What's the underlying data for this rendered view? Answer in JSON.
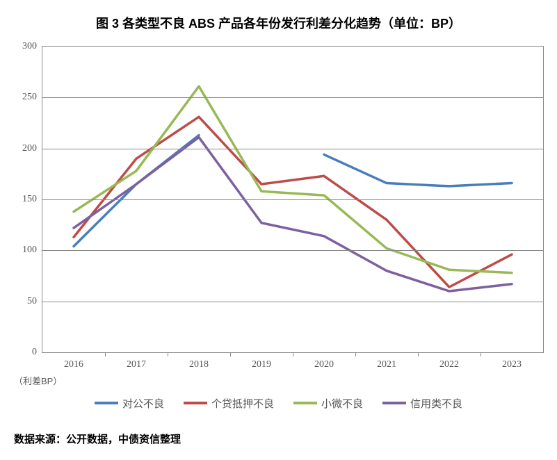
{
  "chart": {
    "type": "line",
    "title": "图 3 各类型不良 ABS 产品各年份发行利差分化趋势（单位：BP）",
    "title_fontsize": 18,
    "title_fontweight": "bold",
    "background_color": "#ffffff",
    "plot_border_color": "#888888",
    "grid_color": "#888888",
    "axis_label": "（利差BP）",
    "axis_label_fontsize": 13,
    "tick_fontsize": 14,
    "tick_color": "#555555",
    "tick_fontfamily": "Times New Roman, serif",
    "line_width": 3.5,
    "xlim": [
      0,
      8
    ],
    "ylim": [
      0,
      300
    ],
    "ytick_step": 50,
    "yticks": [
      0,
      50,
      100,
      150,
      200,
      250,
      300
    ],
    "categories": [
      "2016",
      "2017",
      "2018",
      "2019",
      "2020",
      "2021",
      "2022",
      "2023"
    ],
    "series": [
      {
        "name": "对公不良",
        "color": "#4a7ebb",
        "data": [
          104,
          165,
          213,
          null,
          194,
          166,
          163,
          166
        ]
      },
      {
        "name": "个贷抵押不良",
        "color": "#be4b48",
        "data": [
          113,
          190,
          231,
          165,
          173,
          130,
          64,
          96
        ]
      },
      {
        "name": "小微不良",
        "color": "#98b954",
        "data": [
          138,
          178,
          261,
          158,
          154,
          102,
          81,
          78
        ]
      },
      {
        "name": "信用类不良",
        "color": "#7d60a0",
        "data": [
          122,
          165,
          211,
          127,
          114,
          80,
          60,
          67
        ]
      }
    ],
    "legend_fontsize": 15,
    "legend_swatch_width": 34,
    "legend_swatch_height": 4,
    "source_label": "数据来源：公开数据，中债资信整理",
    "source_fontsize": 15,
    "source_fontweight": "bold"
  }
}
